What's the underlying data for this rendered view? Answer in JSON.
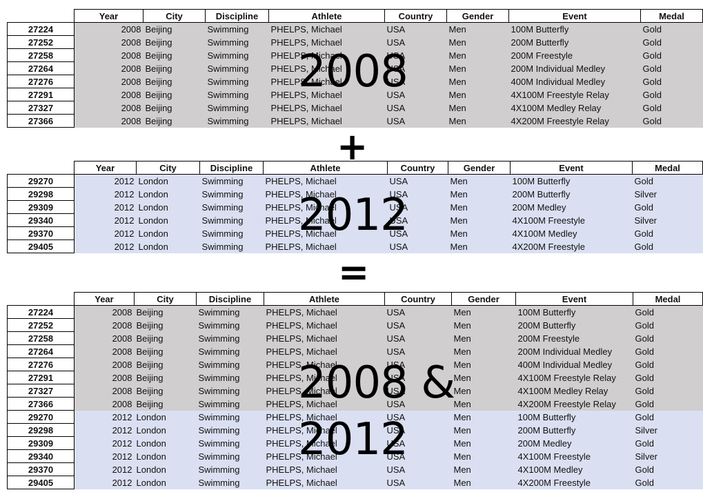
{
  "headers": [
    "Year",
    "City",
    "Discipline",
    "Athlete",
    "Country",
    "Gender",
    "Event",
    "Medal"
  ],
  "table_2008": [
    {
      "id": "27224",
      "year": "2008",
      "city": "Beijing",
      "discipline": "Swimming",
      "athlete": "PHELPS, Michael",
      "country": "USA",
      "gender": "Men",
      "event": "100M Butterfly",
      "medal": "Gold"
    },
    {
      "id": "27252",
      "year": "2008",
      "city": "Beijing",
      "discipline": "Swimming",
      "athlete": "PHELPS, Michael",
      "country": "USA",
      "gender": "Men",
      "event": "200M Butterfly",
      "medal": "Gold"
    },
    {
      "id": "27258",
      "year": "2008",
      "city": "Beijing",
      "discipline": "Swimming",
      "athlete": "PHELPS, Michael",
      "country": "USA",
      "gender": "Men",
      "event": "200M Freestyle",
      "medal": "Gold"
    },
    {
      "id": "27264",
      "year": "2008",
      "city": "Beijing",
      "discipline": "Swimming",
      "athlete": "PHELPS, Michael",
      "country": "USA",
      "gender": "Men",
      "event": "200M Individual Medley",
      "medal": "Gold"
    },
    {
      "id": "27276",
      "year": "2008",
      "city": "Beijing",
      "discipline": "Swimming",
      "athlete": "PHELPS, Michael",
      "country": "USA",
      "gender": "Men",
      "event": "400M Individual Medley",
      "medal": "Gold"
    },
    {
      "id": "27291",
      "year": "2008",
      "city": "Beijing",
      "discipline": "Swimming",
      "athlete": "PHELPS, Michael",
      "country": "USA",
      "gender": "Men",
      "event": "4X100M Freestyle Relay",
      "medal": "Gold"
    },
    {
      "id": "27327",
      "year": "2008",
      "city": "Beijing",
      "discipline": "Swimming",
      "athlete": "PHELPS, Michael",
      "country": "USA",
      "gender": "Men",
      "event": "4X100M Medley Relay",
      "medal": "Gold"
    },
    {
      "id": "27366",
      "year": "2008",
      "city": "Beijing",
      "discipline": "Swimming",
      "athlete": "PHELPS, Michael",
      "country": "USA",
      "gender": "Men",
      "event": "4X200M Freestyle Relay",
      "medal": "Gold"
    }
  ],
  "table_2012": [
    {
      "id": "29270",
      "year": "2012",
      "city": "London",
      "discipline": "Swimming",
      "athlete": "PHELPS, Michael",
      "country": "USA",
      "gender": "Men",
      "event": "100M Butterfly",
      "medal": "Gold"
    },
    {
      "id": "29298",
      "year": "2012",
      "city": "London",
      "discipline": "Swimming",
      "athlete": "PHELPS, Michael",
      "country": "USA",
      "gender": "Men",
      "event": "200M Butterfly",
      "medal": "Silver"
    },
    {
      "id": "29309",
      "year": "2012",
      "city": "London",
      "discipline": "Swimming",
      "athlete": "PHELPS, Michael",
      "country": "USA",
      "gender": "Men",
      "event": "200M Medley",
      "medal": "Gold"
    },
    {
      "id": "29340",
      "year": "2012",
      "city": "London",
      "discipline": "Swimming",
      "athlete": "PHELPS, Michael",
      "country": "USA",
      "gender": "Men",
      "event": "4X100M Freestyle",
      "medal": "Silver"
    },
    {
      "id": "29370",
      "year": "2012",
      "city": "London",
      "discipline": "Swimming",
      "athlete": "PHELPS, Michael",
      "country": "USA",
      "gender": "Men",
      "event": "4X100M Medley",
      "medal": "Gold"
    },
    {
      "id": "29405",
      "year": "2012",
      "city": "London",
      "discipline": "Swimming",
      "athlete": "PHELPS, Michael",
      "country": "USA",
      "gender": "Men",
      "event": "4X200M Freestyle",
      "medal": "Gold"
    }
  ],
  "overlays": {
    "label_2008": "2008",
    "plus": "+",
    "label_2012": "2012",
    "equals": "=",
    "label_combined_line1": "2008 &",
    "label_combined_line2": "2012"
  },
  "colors": {
    "row_2008_bg": "#d0cece",
    "row_2012_bg": "#dae0f2"
  }
}
